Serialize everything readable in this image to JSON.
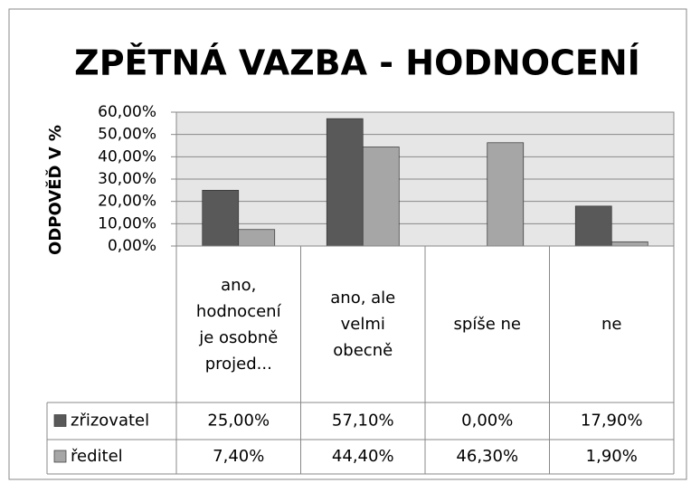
{
  "chart_data": {
    "type": "bar",
    "title": "ZPĚTNÁ VAZBA - HODNOCENÍ",
    "y_label": "ODPOVĚĎ V %",
    "categories": [
      "ano, hodnocení je osobně projed...",
      "ano, ale velmi obecně",
      "spíše ne",
      "ne"
    ],
    "series": [
      {
        "name": "zřizovatel",
        "color": "#595959",
        "values": [
          25,
          57.1,
          0,
          17.9
        ],
        "value_labels": [
          "25,00%",
          "57,10%",
          "0,00%",
          "17,90%"
        ]
      },
      {
        "name": "ředitel",
        "color": "#a6a6a6",
        "values": [
          7.4,
          44.4,
          46.3,
          1.9
        ],
        "value_labels": [
          "7,40%",
          "44,40%",
          "46,30%",
          "1,90%"
        ]
      }
    ],
    "ylim": [
      0,
      60
    ],
    "yticks": [
      {
        "value": 0,
        "label": "0,00%"
      },
      {
        "value": 10,
        "label": "10,00%"
      },
      {
        "value": 20,
        "label": "20,00%"
      },
      {
        "value": 30,
        "label": "30,00%"
      },
      {
        "value": 40,
        "label": "40,00%"
      },
      {
        "value": 50,
        "label": "50,00%"
      },
      {
        "value": 60,
        "label": "60,00%"
      }
    ],
    "grid": true
  }
}
